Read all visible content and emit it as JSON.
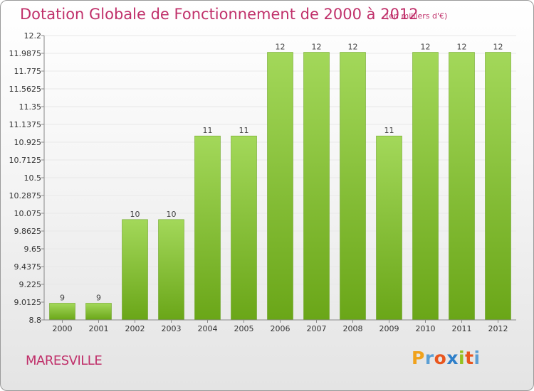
{
  "header": {
    "title": "Dotation Globale de Fonctionnement de 2000 à 2012",
    "unit": "(en milliers d'€)"
  },
  "footer": {
    "commune": "MARESVILLE",
    "logo": [
      "P",
      "r",
      "o",
      "x",
      "i",
      "t",
      "i"
    ],
    "logo_colors": [
      "#f0a21c",
      "#5b9fd4",
      "#e9561e",
      "#2e7fc9",
      "#95c11f",
      "#e9561e",
      "#5b9fd4"
    ]
  },
  "colors": {
    "bar_light": "#a3d85a",
    "bar_dark": "#6aa618",
    "axis": "#888888",
    "grid": "#e8e8e8"
  },
  "chart_data": {
    "type": "bar",
    "title": "Dotation Globale de Fonctionnement de 2000 à 2012",
    "subtitle": "(en milliers d'€)",
    "categories": [
      "2000",
      "2001",
      "2002",
      "2003",
      "2004",
      "2005",
      "2006",
      "2007",
      "2008",
      "2009",
      "2010",
      "2011",
      "2012"
    ],
    "values": [
      9,
      9,
      10,
      10,
      11,
      11,
      12,
      12,
      12,
      11,
      12,
      12,
      12
    ],
    "value_labels": [
      "9",
      "9",
      "10",
      "10",
      "11",
      "11",
      "12",
      "12",
      "12",
      "11",
      "12",
      "12",
      "12"
    ],
    "y_ticks": [
      "8.8",
      "9.0125",
      "9.225",
      "9.4375",
      "9.65",
      "9.8625",
      "10.075",
      "10.2875",
      "10.5",
      "10.7125",
      "10.925",
      "11.1375",
      "11.35",
      "11.5625",
      "11.775",
      "11.9875",
      "12.2"
    ],
    "ylim": [
      8.8,
      12.2
    ],
    "xlabel": "",
    "ylabel": "",
    "grid": true
  }
}
